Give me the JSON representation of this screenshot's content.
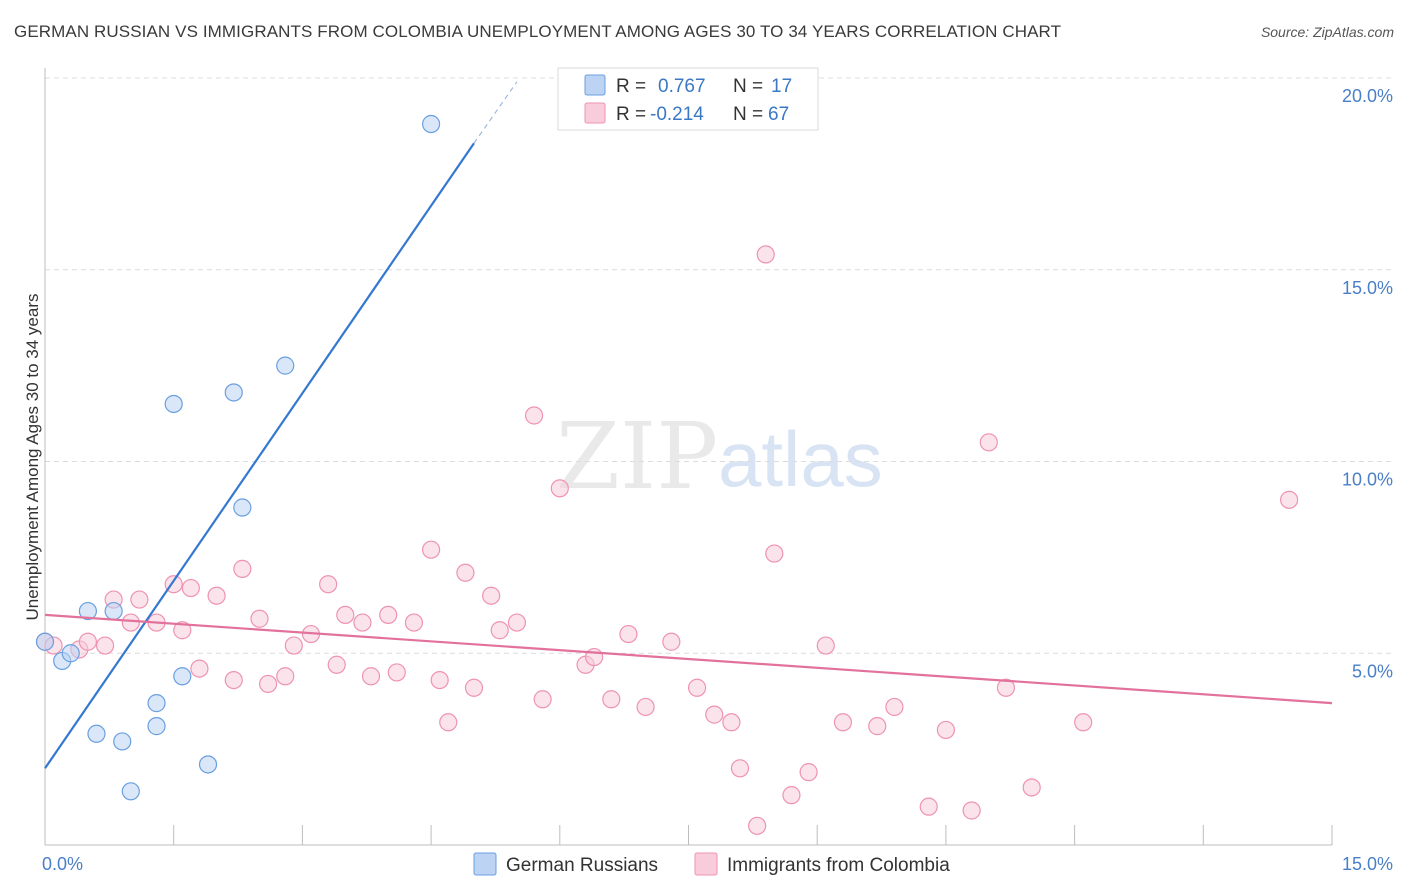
{
  "title": "GERMAN RUSSIAN VS IMMIGRANTS FROM COLOMBIA UNEMPLOYMENT AMONG AGES 30 TO 34 YEARS CORRELATION CHART",
  "source": "Source: ZipAtlas.com",
  "watermark": {
    "zip": "ZIP",
    "atlas": "atlas"
  },
  "colors": {
    "blue_stroke": "#6a9fe0",
    "blue_fill": "#bcd3f3",
    "blue_line": "#3478d0",
    "pink_stroke": "#ee93b2",
    "pink_fill": "#f8ccdb",
    "pink_line": "#e2719b",
    "grid": "#dcdcdc",
    "tick_text": "#4a7fc8"
  },
  "legend": {
    "rows": [
      {
        "r_label": "R =",
        "r_value": "0.767",
        "n_label": "N =",
        "n_value": "17",
        "series": "blue"
      },
      {
        "r_label": "R =",
        "r_value": "-0.214",
        "n_label": "N =",
        "n_value": "67",
        "series": "pink"
      }
    ]
  },
  "bottom_legend": [
    "German Russians",
    "Immigrants from Colombia"
  ],
  "chart_data": {
    "type": "scatter",
    "title": "GERMAN RUSSIAN VS IMMIGRANTS FROM COLOMBIA UNEMPLOYMENT AMONG AGES 30 TO 34 YEARS CORRELATION CHART",
    "xlabel": "",
    "ylabel": "Unemployment Among Ages 30 to 34 years",
    "xlim": [
      0,
      15
    ],
    "ylim": [
      0,
      20
    ],
    "x_tick_labels": [
      "0.0%",
      "15.0%"
    ],
    "y_ticks": [
      5,
      10,
      15,
      20
    ],
    "y_tick_labels": [
      "5.0%",
      "10.0%",
      "15.0%",
      "20.0%"
    ],
    "series": [
      {
        "name": "German Russians",
        "color": "blue",
        "r": 0.767,
        "n": 17,
        "trend": {
          "x0": 0.0,
          "y0": 2.0,
          "x1": 5.0,
          "y1": 18.3,
          "dash_to_x": 5.5,
          "dash_to_y": 19.9
        },
        "points": [
          [
            0.0,
            5.3
          ],
          [
            0.2,
            4.8
          ],
          [
            0.3,
            5.0
          ],
          [
            0.5,
            6.1
          ],
          [
            0.8,
            6.1
          ],
          [
            1.5,
            11.5
          ],
          [
            2.2,
            11.8
          ],
          [
            2.8,
            12.5
          ],
          [
            2.3,
            8.8
          ],
          [
            1.6,
            4.4
          ],
          [
            1.3,
            3.7
          ],
          [
            1.3,
            3.1
          ],
          [
            0.6,
            2.9
          ],
          [
            0.9,
            2.7
          ],
          [
            1.9,
            2.1
          ],
          [
            1.0,
            1.4
          ],
          [
            4.5,
            18.8
          ]
        ]
      },
      {
        "name": "Immigrants from Colombia",
        "color": "pink",
        "r": -0.214,
        "n": 67,
        "trend": {
          "x0": 0.0,
          "y0": 6.0,
          "x1": 15.0,
          "y1": 3.7
        },
        "points": [
          [
            0.0,
            5.3
          ],
          [
            0.1,
            5.2
          ],
          [
            0.4,
            5.1
          ],
          [
            0.5,
            5.3
          ],
          [
            0.7,
            5.2
          ],
          [
            0.8,
            6.4
          ],
          [
            1.0,
            5.8
          ],
          [
            1.1,
            6.4
          ],
          [
            1.3,
            5.8
          ],
          [
            1.5,
            6.8
          ],
          [
            1.6,
            5.6
          ],
          [
            1.7,
            6.7
          ],
          [
            1.8,
            4.6
          ],
          [
            2.0,
            6.5
          ],
          [
            2.2,
            4.3
          ],
          [
            2.3,
            7.2
          ],
          [
            2.5,
            5.9
          ],
          [
            2.6,
            4.2
          ],
          [
            2.8,
            4.4
          ],
          [
            2.9,
            5.2
          ],
          [
            3.1,
            5.5
          ],
          [
            3.3,
            6.8
          ],
          [
            3.4,
            4.7
          ],
          [
            3.5,
            6.0
          ],
          [
            3.7,
            5.8
          ],
          [
            3.8,
            4.4
          ],
          [
            4.0,
            6.0
          ],
          [
            4.1,
            4.5
          ],
          [
            4.3,
            5.8
          ],
          [
            4.5,
            7.7
          ],
          [
            4.6,
            4.3
          ],
          [
            4.7,
            3.2
          ],
          [
            4.9,
            7.1
          ],
          [
            5.0,
            4.1
          ],
          [
            5.2,
            6.5
          ],
          [
            5.3,
            5.6
          ],
          [
            5.5,
            5.8
          ],
          [
            5.7,
            11.2
          ],
          [
            5.8,
            3.8
          ],
          [
            6.0,
            9.3
          ],
          [
            6.3,
            4.7
          ],
          [
            6.4,
            4.9
          ],
          [
            6.6,
            3.8
          ],
          [
            6.8,
            5.5
          ],
          [
            7.0,
            3.6
          ],
          [
            7.3,
            5.3
          ],
          [
            7.6,
            4.1
          ],
          [
            7.8,
            3.4
          ],
          [
            8.0,
            3.2
          ],
          [
            8.1,
            2.0
          ],
          [
            8.3,
            0.5
          ],
          [
            8.4,
            15.4
          ],
          [
            8.5,
            7.6
          ],
          [
            8.7,
            1.3
          ],
          [
            8.9,
            1.9
          ],
          [
            9.1,
            5.2
          ],
          [
            9.3,
            3.2
          ],
          [
            9.7,
            3.1
          ],
          [
            9.9,
            3.6
          ],
          [
            10.3,
            1.0
          ],
          [
            10.5,
            3.0
          ],
          [
            10.8,
            0.9
          ],
          [
            11.0,
            10.5
          ],
          [
            11.2,
            4.1
          ],
          [
            11.5,
            1.5
          ],
          [
            12.1,
            3.2
          ],
          [
            14.5,
            9.0
          ]
        ]
      }
    ]
  }
}
